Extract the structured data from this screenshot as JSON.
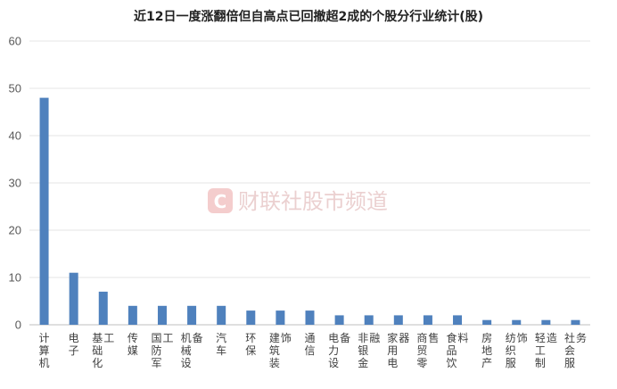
{
  "chart_data": {
    "type": "bar",
    "title": "近12日一度涨翻倍但自高点已回撤超2成的个股分行业统计(股)",
    "categories": [
      "计算机",
      "电子",
      "基础化工",
      "传媒",
      "国防军工",
      "机械设备",
      "汽车",
      "环保",
      "建筑装饰",
      "通信",
      "电力设备",
      "非银金融",
      "家用电器",
      "商贸零售",
      "食品饮料",
      "房地产",
      "纺织服饰",
      "轻工制造",
      "社会服务"
    ],
    "values": [
      48,
      11,
      7,
      4,
      4,
      4,
      4,
      3,
      3,
      3,
      2,
      2,
      2,
      2,
      2,
      1,
      1,
      1,
      1
    ],
    "ylim": [
      0,
      60
    ],
    "yticks": [
      0,
      10,
      20,
      30,
      40,
      50,
      60
    ],
    "grid": true,
    "bar_color": "#4f81bd",
    "xlabel": "",
    "ylabel": ""
  },
  "watermark": {
    "logo_letter": "C",
    "text": "财联社股市频道",
    "color": "#e8c8c8"
  }
}
